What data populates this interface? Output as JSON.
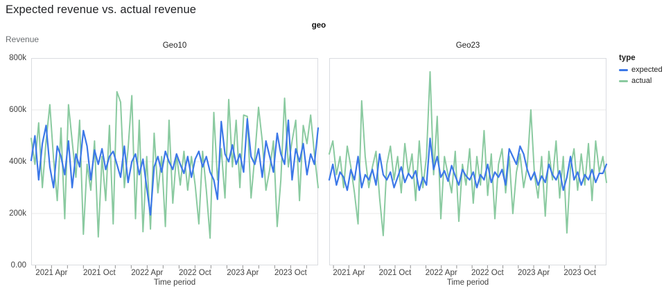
{
  "page": {
    "title": "Expected revenue vs. actual revenue"
  },
  "chart_data": {
    "type": "line",
    "title": "Expected revenue vs. actual revenue",
    "facet_label": "geo",
    "xlabel": "Time period",
    "ylabel": "Revenue",
    "grid": true,
    "y_unit": "k (thousands)",
    "y_domain": [
      0,
      800
    ],
    "y_gridlines": [
      200,
      400,
      600
    ],
    "y_ticks": [
      {
        "label": "800k",
        "v": 800
      },
      {
        "label": "600k",
        "v": 600
      },
      {
        "label": "400k",
        "v": 400
      },
      {
        "label": "200k",
        "v": 200
      },
      {
        "label": "0.00",
        "v": 0
      }
    ],
    "x_domain_months": [
      "2021-01",
      "2023-12"
    ],
    "x_span_months": 36,
    "x_minor_tick_every_months": 2,
    "x_ticks": [
      {
        "label": "2021 Apr",
        "m": 3
      },
      {
        "label": "2021 Oct",
        "m": 9
      },
      {
        "label": "2022 Apr",
        "m": 15
      },
      {
        "label": "2022 Oct",
        "m": 21
      },
      {
        "label": "2023 Apr",
        "m": 27
      },
      {
        "label": "2023 Oct",
        "m": 33
      }
    ],
    "legend": {
      "title": "type",
      "position": "right",
      "items": [
        {
          "label": "expected",
          "color": "#3c78e8"
        },
        {
          "label": "actual",
          "color": "#8acaa0"
        }
      ]
    },
    "n_points": 78,
    "facets": [
      {
        "title": "Geo10",
        "series": [
          {
            "name": "expected",
            "color": "#3c78e8",
            "values": [
              405,
              500,
              330,
              470,
              540,
              380,
              300,
              460,
              420,
              350,
              480,
              300,
              430,
              380,
              520,
              460,
              330,
              445,
              390,
              450,
              370,
              420,
              440,
              390,
              340,
              460,
              320,
              400,
              430,
              350,
              410,
              300,
              195,
              380,
              420,
              360,
              440,
              400,
              370,
              430,
              390,
              355,
              420,
              340,
              410,
              440,
              380,
              420,
              360,
              330,
              255,
              555,
              430,
              400,
              465,
              390,
              430,
              360,
              565,
              420,
              390,
              450,
              340,
              480,
              420,
              360,
              510,
              430,
              390,
              560,
              330,
              450,
              400,
              470,
              350,
              430,
              390,
              530
            ]
          },
          {
            "name": "actual",
            "color": "#8acaa0",
            "values": [
              490,
              390,
              550,
              300,
              480,
              620,
              410,
              250,
              530,
              180,
              620,
              480,
              340,
              560,
              120,
              390,
              290,
              480,
              110,
              420,
              250,
              540,
              160,
              670,
              630,
              300,
              450,
              655,
              180,
              560,
              130,
              420,
              140,
              510,
              280,
              420,
              150,
              560,
              240,
              430,
              310,
              440,
              290,
              420,
              310,
              160,
              440,
              290,
              105,
              590,
              330,
              450,
              260,
              640,
              380,
              560,
              300,
              580,
              575,
              260,
              420,
              610,
              480,
              290,
              370,
              480,
              150,
              330,
              645,
              380,
              480,
              560,
              250,
              540,
              470,
              580,
              430,
              300
            ]
          }
        ]
      },
      {
        "title": "Geo23",
        "series": [
          {
            "name": "expected",
            "color": "#3c78e8",
            "values": [
              330,
              390,
              310,
              360,
              340,
              290,
              370,
              330,
              420,
              300,
              350,
              330,
              370,
              310,
              430,
              350,
              330,
              360,
              300,
              340,
              380,
              320,
              355,
              335,
              365,
              290,
              340,
              310,
              490,
              370,
              420,
              340,
              365,
              325,
              385,
              345,
              310,
              370,
              345,
              330,
              360,
              300,
              350,
              330,
              390,
              320,
              360,
              340,
              370,
              310,
              450,
              420,
              390,
              460,
              430,
              370,
              330,
              360,
              310,
              345,
              320,
              390,
              350,
              330,
              365,
              290,
              340,
              420,
              330,
              360,
              310,
              350,
              330,
              370,
              320,
              355,
              355,
              390
            ]
          },
          {
            "name": "actual",
            "color": "#8acaa0",
            "values": [
              430,
              480,
              350,
              420,
              300,
              460,
              380,
              280,
              160,
              635,
              420,
              300,
              380,
              440,
              260,
              115,
              390,
              460,
              330,
              420,
              280,
              470,
              350,
              430,
              250,
              480,
              300,
              420,
              747,
              350,
              575,
              180,
              420,
              350,
              280,
              440,
              170,
              390,
              310,
              450,
              240,
              420,
              310,
              520,
              270,
              430,
              180,
              390,
              450,
              280,
              420,
              200,
              360,
              430,
              300,
              380,
              600,
              350,
              260,
              420,
              190,
              440,
              330,
              480,
              260,
              420,
              125,
              380,
              450,
              290,
              430,
              310,
              470,
              250,
              480,
              360,
              420,
              320
            ]
          }
        ]
      }
    ],
    "style": {
      "grid_color": "#e8e8e8",
      "border_color": "#dadce0",
      "tick_color": "#8f8f8f"
    }
  }
}
